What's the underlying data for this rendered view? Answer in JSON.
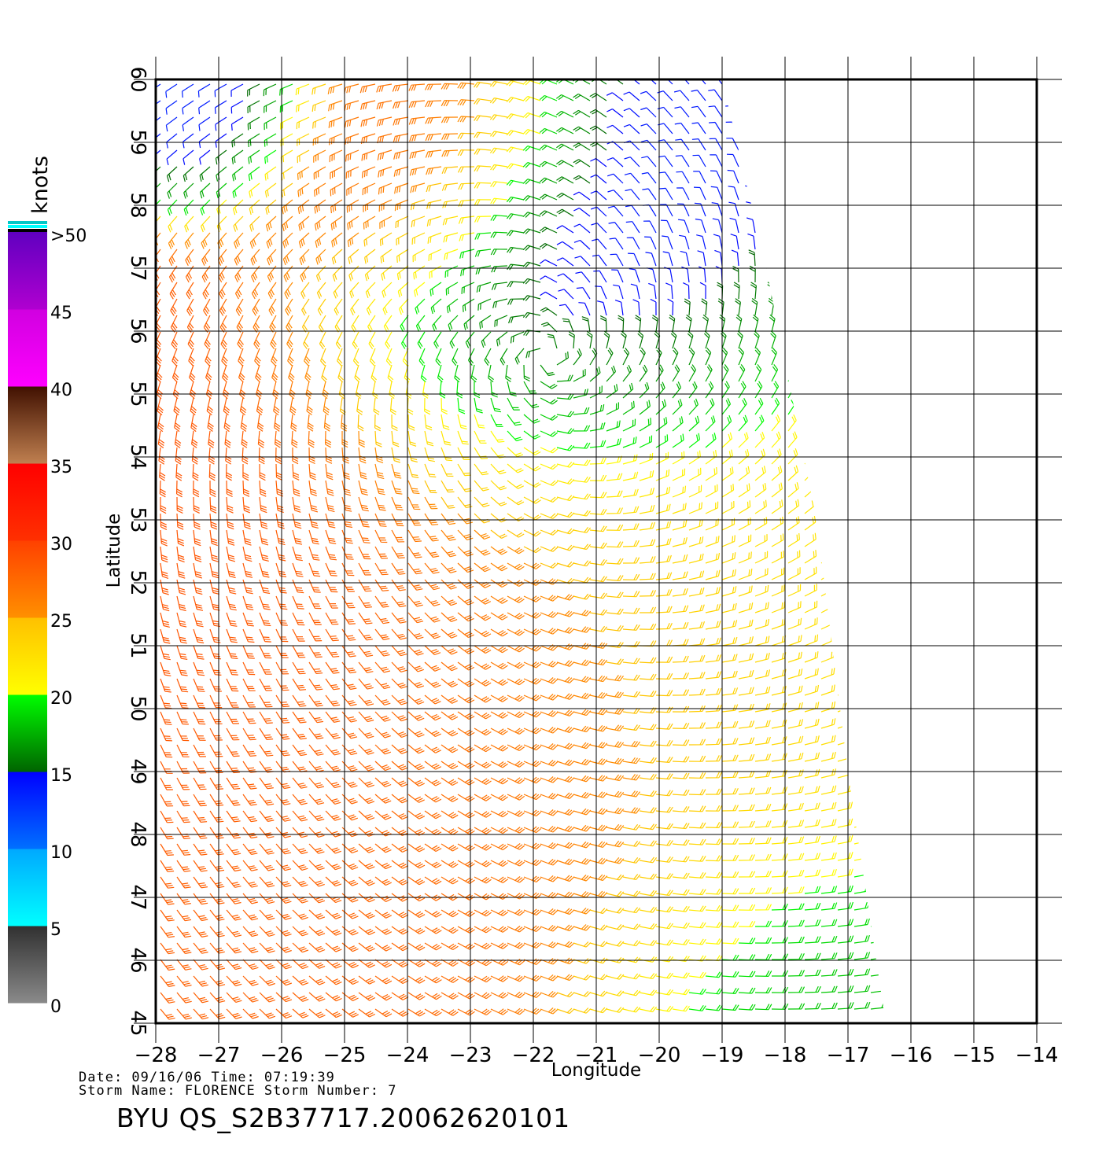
{
  "chart_data": {
    "type": "scatter",
    "xlabel": "Longitude",
    "ylabel": "Latitude",
    "xlim": [
      -28,
      -14
    ],
    "ylim": [
      45,
      60
    ],
    "xticks": [
      -28,
      -27,
      -26,
      -25,
      -24,
      -23,
      -22,
      -21,
      -20,
      -19,
      -18,
      -17,
      -16,
      -15,
      -14
    ],
    "yticks": [
      45,
      46,
      47,
      48,
      49,
      50,
      51,
      52,
      53,
      54,
      55,
      56,
      57,
      58,
      59,
      60
    ],
    "grid": true,
    "marks": "wind barbs",
    "colorbar": {
      "label": "knots",
      "tick_labels": [
        ">50",
        "45",
        "40",
        "35",
        "30",
        "25",
        "20",
        "15",
        "10",
        "5",
        "0"
      ],
      "bands": [
        {
          "range": [
            0,
            5
          ],
          "from": "#8a8a8a",
          "to": "#303030"
        },
        {
          "range": [
            5,
            10
          ],
          "from": "#00ffff",
          "to": "#00a8ff"
        },
        {
          "range": [
            10,
            15
          ],
          "from": "#0070ff",
          "to": "#0000ff"
        },
        {
          "range": [
            15,
            20
          ],
          "from": "#006400",
          "to": "#00ff00"
        },
        {
          "range": [
            20,
            25
          ],
          "from": "#ffff00",
          "to": "#ffc000"
        },
        {
          "range": [
            25,
            30
          ],
          "from": "#ff9000",
          "to": "#ff4000"
        },
        {
          "range": [
            30,
            35
          ],
          "from": "#ff3000",
          "to": "#ff0000"
        },
        {
          "range": [
            35,
            40
          ],
          "from": "#c08050",
          "to": "#401000"
        },
        {
          "range": [
            40,
            45
          ],
          "from": "#ff00ff",
          "to": "#d000e0"
        },
        {
          "range": [
            45,
            50
          ],
          "from": "#b000d0",
          "to": "#6000c0"
        }
      ],
      "top_stripes": [
        "#00c8c8",
        "#00ffff",
        "#000000"
      ]
    },
    "swath_polygon": [
      [
        -28,
        60
      ],
      [
        -19,
        60
      ],
      [
        -18.3,
        57
      ],
      [
        -17.5,
        53
      ],
      [
        -17,
        49
      ],
      [
        -16.4,
        45
      ],
      [
        -28,
        45
      ]
    ],
    "wind_field": [
      {
        "region": "calm center",
        "center": [
          -21.8,
          55.8
        ],
        "radius": 2.0,
        "speed_knots": 12
      },
      {
        "region": "northwest blue",
        "center": [
          -27.2,
          59.4
        ],
        "radius": 0.9,
        "speed_knots": 13
      },
      {
        "region": "north band",
        "center": [
          -24.2,
          58.4
        ],
        "radius": 1.2,
        "speed_knots": 28
      },
      {
        "region": "western band",
        "center": [
          -26.0,
          53.0
        ],
        "radius": 3.0,
        "speed_knots": 29
      },
      {
        "region": "southern band",
        "center": [
          -22.5,
          49.5
        ],
        "radius": 3.2,
        "speed_knots": 28
      },
      {
        "region": "east",
        "center": [
          -18.5,
          51.0
        ],
        "radius": 3.0,
        "speed_knots": 21
      },
      {
        "region": "southeast",
        "center": [
          -17.8,
          45.8
        ],
        "radius": 1.8,
        "speed_knots": 17
      }
    ]
  },
  "footer": {
    "line1": "Date: 09/16/06   Time: 07:19:39",
    "line2": "Storm  Name: FLORENCE   Storm  Number: 7",
    "product": "BYU  QS_S2B37717.20062620101"
  }
}
